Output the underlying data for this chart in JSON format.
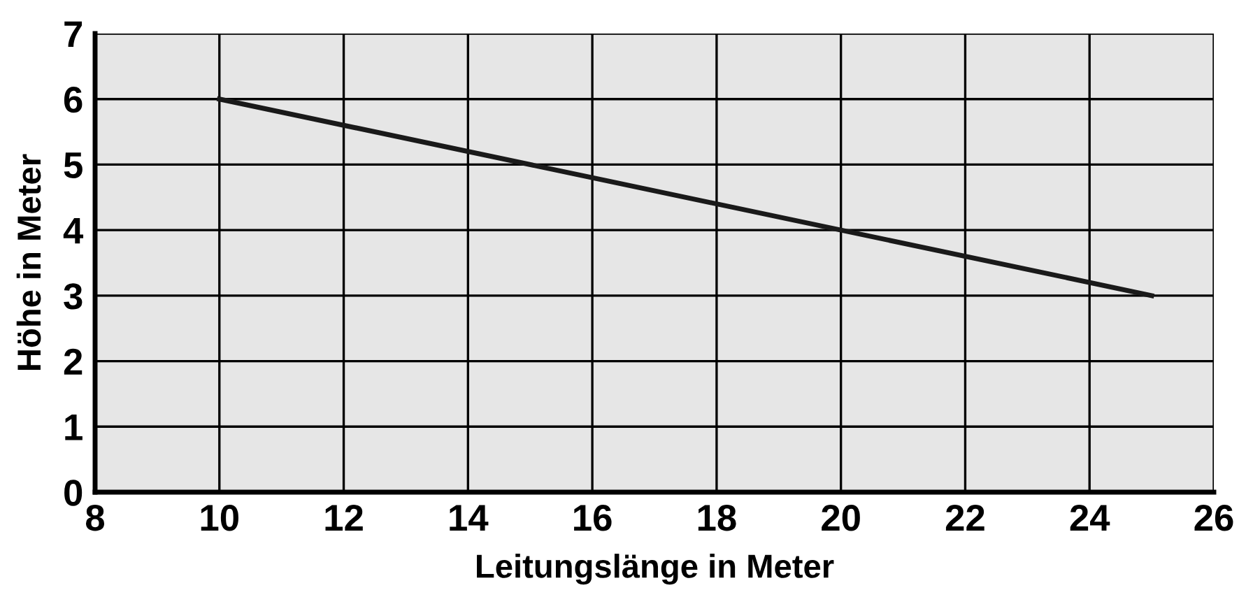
{
  "chart_data": {
    "type": "line",
    "xlabel": "Leitungslänge in Meter",
    "ylabel": "Höhe in Meter",
    "x": [
      10,
      25
    ],
    "series": [
      {
        "color": "#1a1a1a",
        "values": [
          6,
          3
        ]
      }
    ],
    "xlim": [
      8,
      26
    ],
    "xticks": [
      8,
      10,
      12,
      14,
      16,
      18,
      20,
      22,
      24,
      26
    ],
    "ylim": [
      0,
      7
    ],
    "yticks": [
      0,
      1,
      2,
      3,
      4,
      5,
      6,
      7
    ],
    "grid": true,
    "marker": "none",
    "line_style": "solid"
  }
}
